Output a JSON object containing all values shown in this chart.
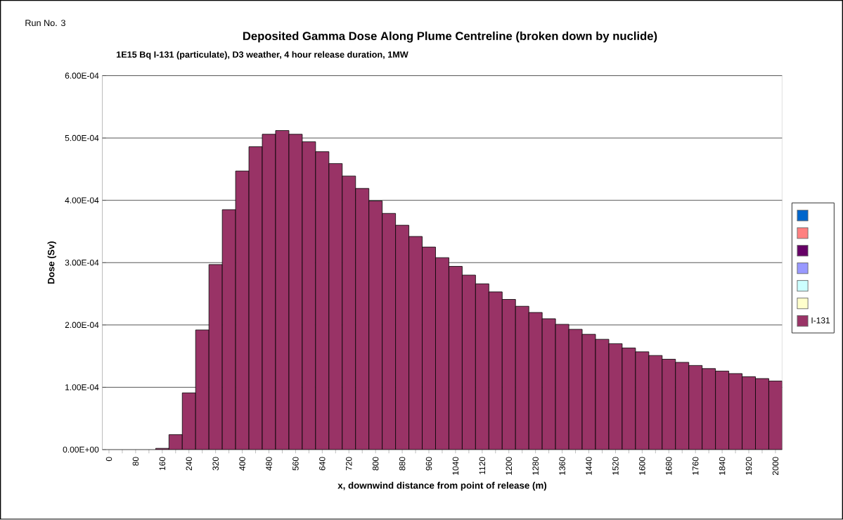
{
  "chart_data": {
    "type": "bar",
    "title": "Deposited Gamma Dose Along Plume Centreline (broken down by nuclide)",
    "subtitle": "1E15 Bq I-131 (particulate), D3 weather, 4 hour release duration, 1MW",
    "xlabel": "x, downwind distance from point of release (m)",
    "ylabel": "Dose (Sv)",
    "annotations": [
      "Run No. 3"
    ],
    "categories": [
      "0",
      null,
      "80",
      null,
      "160",
      null,
      "240",
      null,
      "320",
      null,
      "400",
      null,
      "480",
      null,
      "560",
      null,
      "640",
      null,
      "720",
      null,
      "800",
      null,
      "880",
      null,
      "960",
      null,
      "1040",
      null,
      "1120",
      null,
      "1200",
      null,
      "1280",
      null,
      "1360",
      null,
      "1440",
      null,
      "1520",
      null,
      "1600",
      null,
      "1680",
      null,
      "1760",
      null,
      "1840",
      null,
      "1920",
      null,
      "2000"
    ],
    "series": [
      {
        "color": "#0066cc",
        "values": [
          null,
          null,
          null,
          null,
          null,
          null,
          null,
          null,
          null,
          null,
          null,
          null,
          null,
          null,
          null,
          null,
          null,
          null,
          null,
          null,
          null,
          null,
          null,
          null,
          null,
          null,
          null,
          null,
          null,
          null,
          null,
          null,
          null,
          null,
          null,
          null,
          null,
          null,
          null,
          null,
          null,
          null,
          null,
          null,
          null,
          null,
          null,
          null,
          null,
          null,
          null
        ]
      },
      {
        "color": "#ff8080",
        "values": [
          null,
          null,
          null,
          null,
          null,
          null,
          null,
          null,
          null,
          null,
          null,
          null,
          null,
          null,
          null,
          null,
          null,
          null,
          null,
          null,
          null,
          null,
          null,
          null,
          null,
          null,
          null,
          null,
          null,
          null,
          null,
          null,
          null,
          null,
          null,
          null,
          null,
          null,
          null,
          null,
          null,
          null,
          null,
          null,
          null,
          null,
          null,
          null,
          null,
          null,
          null
        ]
      },
      {
        "color": "#660066",
        "values": [
          null,
          null,
          null,
          null,
          null,
          null,
          null,
          null,
          null,
          null,
          null,
          null,
          null,
          null,
          null,
          null,
          null,
          null,
          null,
          null,
          null,
          null,
          null,
          null,
          null,
          null,
          null,
          null,
          null,
          null,
          null,
          null,
          null,
          null,
          null,
          null,
          null,
          null,
          null,
          null,
          null,
          null,
          null,
          null,
          null,
          null,
          null,
          null,
          null,
          null,
          null
        ]
      },
      {
        "color": "#9999ff",
        "values": [
          null,
          null,
          null,
          null,
          null,
          null,
          null,
          null,
          null,
          null,
          null,
          null,
          null,
          null,
          null,
          null,
          null,
          null,
          null,
          null,
          null,
          null,
          null,
          null,
          null,
          null,
          null,
          null,
          null,
          null,
          null,
          null,
          null,
          null,
          null,
          null,
          null,
          null,
          null,
          null,
          null,
          null,
          null,
          null,
          null,
          null,
          null,
          null,
          null,
          null,
          null
        ]
      },
      {
        "color": "#ccffff",
        "values": [
          null,
          null,
          null,
          null,
          null,
          null,
          null,
          null,
          null,
          null,
          null,
          null,
          null,
          null,
          null,
          null,
          null,
          null,
          null,
          null,
          null,
          null,
          null,
          null,
          null,
          null,
          null,
          null,
          null,
          null,
          null,
          null,
          null,
          null,
          null,
          null,
          null,
          null,
          null,
          null,
          null,
          null,
          null,
          null,
          null,
          null,
          null,
          null,
          null,
          null,
          null
        ]
      },
      {
        "color": "#ffffcc",
        "values": [
          null,
          null,
          null,
          null,
          null,
          null,
          null,
          null,
          null,
          null,
          null,
          null,
          null,
          null,
          null,
          null,
          null,
          null,
          null,
          null,
          null,
          null,
          null,
          null,
          null,
          null,
          null,
          null,
          null,
          null,
          null,
          null,
          null,
          null,
          null,
          null,
          null,
          null,
          null,
          null,
          null,
          null,
          null,
          null,
          null,
          null,
          null,
          null,
          null,
          null,
          null
        ]
      },
      {
        "name": "I-131",
        "color": "#993366",
        "values": [
          null,
          null,
          null,
          null,
          2e-06,
          2.4e-05,
          9.1e-05,
          0.000192,
          0.000297,
          0.000385,
          0.000447,
          0.000486,
          0.000506,
          0.000512,
          0.000506,
          0.000494,
          0.000478,
          0.000459,
          0.000439,
          0.000419,
          0.000399,
          0.000379,
          0.00036,
          0.000342,
          0.000325,
          0.000308,
          0.000294,
          0.00028,
          0.000266,
          0.000253,
          0.000241,
          0.00023,
          0.00022,
          0.00021,
          0.000201,
          0.000193,
          0.000185,
          0.000177,
          0.00017,
          0.000163,
          0.000157,
          0.000151,
          0.000145,
          0.00014,
          0.000135,
          0.00013,
          0.000126,
          0.000122,
          0.000117,
          0.000114,
          0.00011
        ]
      }
    ],
    "ylim": [
      0,
      0.0006
    ],
    "yticks": [
      {
        "value": 0,
        "label": "0.00E+00"
      },
      {
        "value": 0.0001,
        "label": "1.00E-04"
      },
      {
        "value": 0.0002,
        "label": "2.00E-04"
      },
      {
        "value": 0.0003,
        "label": "3.00E-04"
      },
      {
        "value": 0.0004,
        "label": "4.00E-04"
      },
      {
        "value": 0.0005,
        "label": "5.00E-04"
      },
      {
        "value": 0.0006,
        "label": "6.00E-04"
      }
    ],
    "grid": "y",
    "legend": "right"
  }
}
